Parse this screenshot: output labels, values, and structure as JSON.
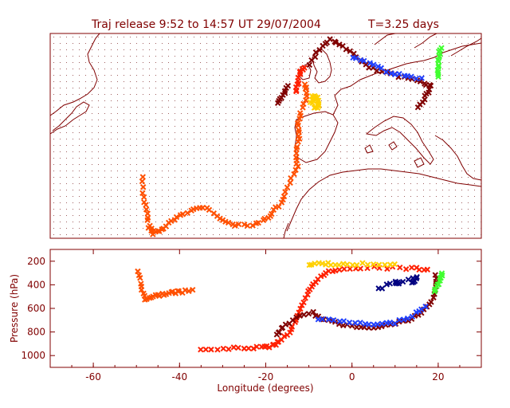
{
  "title": "Traj release 9:52 to 14:57 UT 29/07/2004",
  "subtitle": "T=3.25 days",
  "colors": {
    "axis": "#800000",
    "background": "#ffffff",
    "series_palette": [
      "#800000",
      "#c00000",
      "#ff2000",
      "#ff6a00",
      "#ffa000",
      "#ffd000",
      "#ffff00",
      "#40ff30",
      "#00a0a0",
      "#2040ff",
      "#000080"
    ]
  },
  "chart_data": [
    {
      "type": "scatter",
      "panel": "map",
      "description_of_view": "lat-lon map with coastlines and dotted lat-lon grid",
      "grid": true,
      "xlim": [
        -70,
        30
      ],
      "tracks": [
        {
          "name": "",
          "color": "#ff5000",
          "points": [
            [
              -48.5,
              23.0
            ],
            [
              -48.3,
              17.0
            ],
            [
              -47.5,
              12.0
            ],
            [
              -47.0,
              8.0
            ],
            [
              -46.0,
              6.5
            ],
            [
              -44.0,
              7.5
            ],
            [
              -42.0,
              10.0
            ],
            [
              -39.0,
              12.0
            ],
            [
              -36.0,
              14.0
            ],
            [
              -33.0,
              13.5
            ],
            [
              -30.0,
              10.0
            ],
            [
              -27.0,
              9.0
            ],
            [
              -23.0,
              9.0
            ],
            [
              -20.0,
              10.5
            ],
            [
              -18.0,
              13.0
            ],
            [
              -16.0,
              16.0
            ],
            [
              -14.5,
              21.0
            ],
            [
              -12.5,
              26.0
            ],
            [
              -13.0,
              30.0
            ],
            [
              -12.0,
              34.0
            ],
            [
              -12.5,
              38.0
            ],
            [
              -12.0,
              42.0
            ],
            [
              -10.5,
              47.0
            ],
            [
              -11.0,
              50.0
            ]
          ]
        },
        {
          "name": "",
          "color": "#800000",
          "points": [
            [
              -10.0,
              56.0
            ],
            [
              -7.5,
              60.5
            ],
            [
              -5.0,
              63.0
            ],
            [
              -2.0,
              61.5
            ],
            [
              1.0,
              58.0
            ],
            [
              4.0,
              55.0
            ],
            [
              8.0,
              53.5
            ],
            [
              12.0,
              52.0
            ],
            [
              16.0,
              51.0
            ],
            [
              18.5,
              49.5
            ],
            [
              17.0,
              46.5
            ],
            [
              15.5,
              43.5
            ]
          ]
        },
        {
          "name": "",
          "color": "#2040ff",
          "points": [
            [
              0.0,
              58.0
            ],
            [
              4.0,
              56.5
            ],
            [
              8.0,
              54.0
            ],
            [
              12.0,
              52.5
            ],
            [
              16.0,
              52.0
            ]
          ]
        },
        {
          "name": "",
          "color": "#40ff30",
          "points": [
            [
              20.0,
              52.0
            ],
            [
              20.0,
              55.0
            ],
            [
              20.3,
              58.0
            ],
            [
              20.5,
              61.0
            ]
          ]
        },
        {
          "name": "",
          "color": "#ffd000",
          "points": [
            [
              -9.5,
              44.5
            ],
            [
              -9.0,
              46.5
            ],
            [
              -8.0,
              46.0
            ],
            [
              -7.5,
              44.0
            ],
            [
              -8.5,
              43.0
            ]
          ]
        },
        {
          "name": "",
          "color": "#800000",
          "points": [
            [
              -17.0,
              44.5
            ],
            [
              -16.0,
              47.0
            ],
            [
              -15.0,
              49.5
            ]
          ]
        },
        {
          "name": "",
          "color": "#ff2000",
          "points": [
            [
              -13.0,
              48.0
            ],
            [
              -12.5,
              50.5
            ],
            [
              -12.0,
              53.5
            ],
            [
              -11.0,
              55.0
            ]
          ]
        }
      ]
    },
    {
      "type": "scatter",
      "panel": "pressure",
      "xlabel": "Longitude (degrees)",
      "ylabel": "Pressure (hPa)",
      "xlim": [
        -70,
        30
      ],
      "ylim": [
        1100,
        100
      ],
      "xticks": [
        -60,
        -40,
        -20,
        0,
        20
      ],
      "yticks": [
        200,
        400,
        600,
        800,
        1000
      ],
      "tracks": [
        {
          "name": "",
          "color": "#ff5000",
          "points": [
            [
              -49.5,
              280
            ],
            [
              -49.0,
              420
            ],
            [
              -48.0,
              520
            ],
            [
              -46.0,
              500
            ],
            [
              -44.0,
              480
            ],
            [
              -42.0,
              470
            ],
            [
              -40.0,
              460
            ],
            [
              -37.0,
              450
            ]
          ]
        },
        {
          "name": "",
          "color": "#ff2000",
          "points": [
            [
              -35.0,
              950
            ],
            [
              -30.0,
              945
            ],
            [
              -25.0,
              935
            ],
            [
              -21.0,
              930
            ],
            [
              -18.5,
              920
            ],
            [
              -17.0,
              880
            ],
            [
              -14.5,
              800
            ],
            [
              -13.0,
              700
            ],
            [
              -11.5,
              580
            ],
            [
              -10.0,
              460
            ],
            [
              -8.5,
              370
            ],
            [
              -6.0,
              300
            ],
            [
              -3.0,
              265
            ],
            [
              2.0,
              255
            ],
            [
              8.0,
              255
            ],
            [
              14.0,
              260
            ],
            [
              17.5,
              270
            ]
          ]
        },
        {
          "name": "",
          "color": "#800000",
          "points": [
            [
              -17.5,
              830
            ],
            [
              -16.0,
              760
            ],
            [
              -13.0,
              680
            ],
            [
              -9.0,
              640
            ],
            [
              -6.5,
              700
            ],
            [
              -3.0,
              730
            ],
            [
              1.0,
              755
            ],
            [
              5.0,
              755
            ],
            [
              9.0,
              740
            ],
            [
              13.0,
              700
            ],
            [
              16.0,
              640
            ],
            [
              18.5,
              540
            ],
            [
              19.5,
              420
            ],
            [
              19.5,
              310
            ]
          ]
        },
        {
          "name": "",
          "color": "#2040ff",
          "points": [
            [
              -8.0,
              700
            ],
            [
              -3.0,
              705
            ],
            [
              2.0,
              730
            ],
            [
              6.0,
              740
            ],
            [
              10.0,
              720
            ],
            [
              14.0,
              660
            ],
            [
              17.0,
              580
            ]
          ]
        },
        {
          "name": "",
          "color": "#40ff30",
          "points": [
            [
              19.0,
              460
            ],
            [
              20.0,
              400
            ],
            [
              20.5,
              350
            ],
            [
              21.0,
              300
            ]
          ]
        },
        {
          "name": "",
          "color": "#ffd000",
          "points": [
            [
              -10.0,
              230
            ],
            [
              -7.0,
              220
            ],
            [
              -4.0,
              225
            ],
            [
              0.0,
              230
            ],
            [
              5.0,
              220
            ],
            [
              10.0,
              225
            ]
          ]
        },
        {
          "name": "",
          "color": "#000080",
          "points": [
            [
              6.0,
              440
            ],
            [
              10.0,
              370
            ],
            [
              11.0,
              390
            ],
            [
              15.0,
              340
            ],
            [
              14.0,
              380
            ]
          ]
        }
      ]
    }
  ]
}
